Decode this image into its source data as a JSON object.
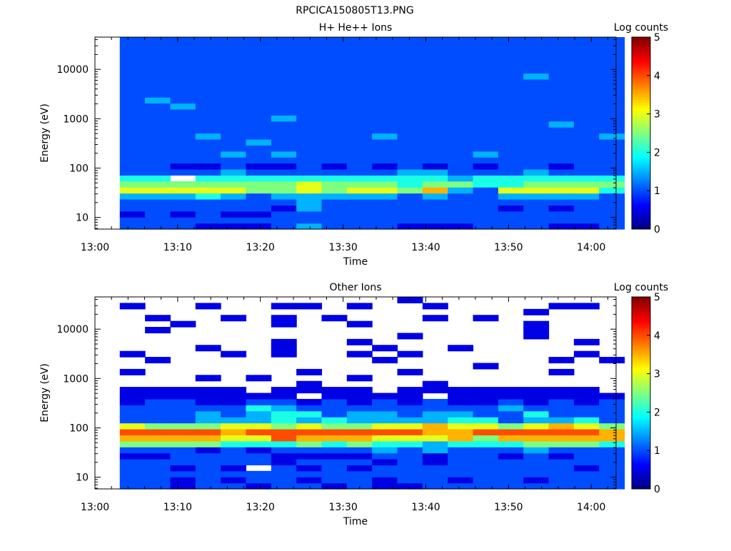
{
  "title": "RPCICA150805T13.PNG",
  "chart_data": [
    {
      "type": "heatmap",
      "title": "H+ He++ Ions",
      "xlabel": "Time",
      "ylabel": "Energy (eV)",
      "y_scale": "log",
      "ylim": [
        5.8,
        45000
      ],
      "xlim": [
        "13:00",
        "14:03"
      ],
      "x_ticks": [
        "13:00",
        "13:10",
        "13:20",
        "13:30",
        "13:40",
        "13:50",
        "14:00"
      ],
      "y_ticks": [
        "10",
        "100",
        "1000",
        "10000"
      ],
      "colorbar_label": "Log counts",
      "colorbar_range": [
        0,
        5
      ],
      "colorbar_ticks": [
        "0",
        "1",
        "2",
        "3",
        "4",
        "5"
      ],
      "colormap": [
        "#00007f",
        "#0000ff",
        "#007fff",
        "#00ffff",
        "#7fff7f",
        "#ffff00",
        "#ff7f00",
        "#ff0000",
        "#7f0000"
      ],
      "time_bins": {
        "start": "13:03",
        "end": "14:04",
        "count": 20
      },
      "energy_bins": {
        "min": 5.8,
        "max": 45000,
        "count": 32
      },
      "value_scale": "digit/2 = log counts; '.' = no data",
      "rows_low_to_high_energy": [
        "22211123222111222112",
        "22222222222222222222",
        "12121122222222222222",
        "22222213222222212122",
        "22222223222222222222",
        "33343233333232233332",
        "66666556566573266664",
        "55555556555455445555",
        "44.44444444443444444",
        "22223222222332223222",
        "22112112121212122122",
        "22222222222222222222",
        "22223232222222322222",
        "22222222222222222222",
        "22222322222222222222",
        "22232222223222222223",
        "22222222222222222222",
        "22222222222222222322",
        "22222232222222222222",
        "22222222222222222222",
        "22322222222222222222",
        "23222222222222222222",
        "22222222222222222222",
        "22222222222222222222",
        "22222222222222222222",
        "22222222222222223222",
        "22222222222222222222",
        "22222222222222222222",
        "22222222222222222222",
        "22222222222222222222",
        "22222222222222222222",
        "22222222222222222222"
      ]
    },
    {
      "type": "heatmap",
      "title": "Other Ions",
      "xlabel": "Time",
      "ylabel": "Energy (eV)",
      "y_scale": "log",
      "ylim": [
        5.8,
        45000
      ],
      "xlim": [
        "13:00",
        "14:03"
      ],
      "x_ticks": [
        "13:00",
        "13:10",
        "13:20",
        "13:30",
        "13:40",
        "13:50",
        "14:00"
      ],
      "y_ticks": [
        "10",
        "100",
        "1000",
        "10000"
      ],
      "colorbar_label": "Log counts",
      "colorbar_range": [
        0,
        5
      ],
      "colorbar_ticks": [
        "0",
        "1",
        "2",
        "3",
        "4",
        "5"
      ],
      "colormap": [
        "#00007f",
        "#0000ff",
        "#007fff",
        "#00ffff",
        "#7fff7f",
        "#ffff00",
        "#ff7f00",
        "#ff0000",
        "#7f0000"
      ],
      "time_bins": {
        "start": "13:03",
        "end": "14:04",
        "count": 20
      },
      "energy_bins": {
        "min": 5.8,
        "max": 45000,
        "count": 32
      },
      "value_scale": "digit/2 = log counts; '.' = no data",
      "rows_low_to_high_energy": [
        "22122122121122222222",
        "22121221221221221222",
        "22222222222222222222",
        "22121.21212222222212",
        "22222212221212222222",
        "11222211112212212122",
        "22212122223232223222",
        "55554445454434445554",
        "77776687776667577777",
        "88887888888877888887",
        "65556656556676656765",
        "22233343433334423342",
        "22232344233233224222",
        "22222432222222232222",
        "12211221212121121212",
        "1111111.1111.1111111",
        "11111.1111.11111111.",
        ".......1....1.......",
        "...1.1...1..........",
        "1......1...1.....1..",
        "..............1.....",
        ".1........1......1.1",
        "1...1.1..1.1......1.",
        "...1..1...1..1......",
        "......1..1........1.",
        "...........1....1...",
        ".1..............1...",
        "..1...1..1......1...",
        ".1..1.1.1...1.1.....",
        "................1...",
        "1..1..11.1..1....11.",
        "...........1........"
      ]
    }
  ]
}
